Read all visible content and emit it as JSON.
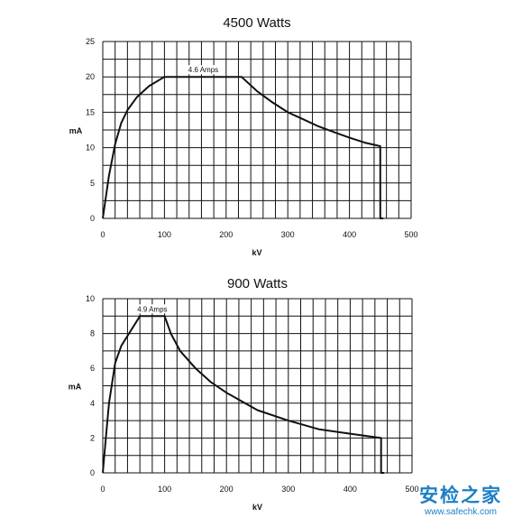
{
  "chart_data": [
    {
      "type": "line",
      "title": "4500 Watts",
      "xlabel": "kV",
      "ylabel": "mA",
      "xlim": [
        0,
        500
      ],
      "ylim": [
        0,
        25
      ],
      "xticks": [
        0,
        100,
        200,
        300,
        400,
        500
      ],
      "yticks": [
        0,
        5,
        10,
        15,
        20,
        25
      ],
      "grid": true,
      "annotation": {
        "text": "4.6 Amps",
        "x": 163,
        "y": 20
      },
      "series": [
        {
          "x": [
            0,
            5,
            10,
            20,
            30,
            40,
            55,
            75,
            100,
            225,
            250,
            275,
            300,
            325,
            350,
            375,
            400,
            425,
            450,
            450,
            455
          ],
          "y": [
            0,
            3,
            6,
            10.5,
            13.5,
            15.3,
            17.1,
            18.7,
            20,
            20,
            18,
            16.4,
            15,
            14,
            13,
            12.2,
            11.4,
            10.7,
            10.2,
            0,
            0
          ]
        }
      ]
    },
    {
      "type": "line",
      "title": "900 Watts",
      "xlabel": "kV",
      "ylabel": "mA",
      "xlim": [
        0,
        500
      ],
      "ylim": [
        0,
        10
      ],
      "xticks": [
        0,
        100,
        200,
        300,
        400,
        500
      ],
      "yticks": [
        0,
        2,
        4,
        6,
        8,
        10
      ],
      "grid": true,
      "annotation": {
        "text": "4.9 Amps",
        "x": 80,
        "y": 9
      },
      "series": [
        {
          "x": [
            0,
            5,
            10,
            20,
            30,
            60,
            100,
            110,
            125,
            150,
            175,
            200,
            225,
            250,
            300,
            350,
            400,
            450,
            450,
            455
          ],
          "y": [
            0,
            2,
            4,
            6.3,
            7.3,
            9,
            9,
            8,
            7,
            6,
            5.2,
            4.6,
            4.1,
            3.6,
            3,
            2.5,
            2.25,
            2,
            0,
            0
          ]
        }
      ]
    }
  ],
  "watermark": {
    "main": "安检之家",
    "url": "www.safechk.com"
  }
}
